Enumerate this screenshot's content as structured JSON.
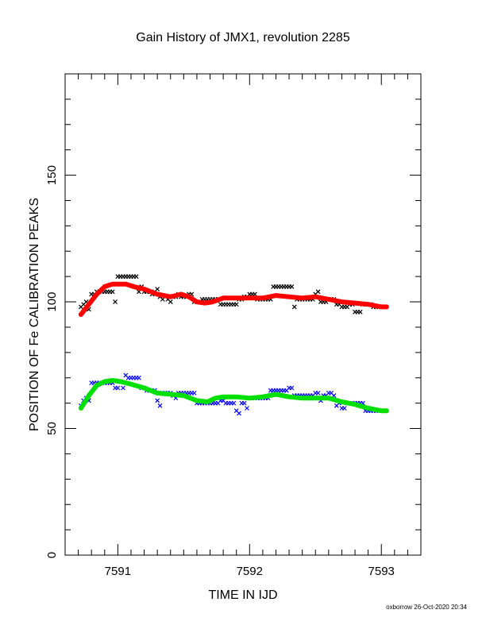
{
  "chart_data": {
    "type": "scatter",
    "title": "Gain History of JMX1, revolution 2285",
    "xlabel": "TIME IN IJD",
    "ylabel": "POSITION OF Fe CALIBRATION PEAKS",
    "xlim": [
      7590.6,
      7593.3
    ],
    "ylim": [
      0,
      190
    ],
    "xticks": [
      7591,
      7592,
      7593
    ],
    "yticks": [
      0,
      50,
      100,
      150
    ],
    "footer": "oxborrow 26-Oct-2020 20:34",
    "series": [
      {
        "role": "upper-points",
        "color": "#000000",
        "marker": "x",
        "points": [
          [
            7590.72,
            98
          ],
          [
            7590.74,
            99
          ],
          [
            7590.76,
            100
          ],
          [
            7590.78,
            97
          ],
          [
            7590.8,
            103
          ],
          [
            7590.82,
            103
          ],
          [
            7590.84,
            104
          ],
          [
            7590.86,
            104
          ],
          [
            7590.88,
            104
          ],
          [
            7590.9,
            104
          ],
          [
            7590.92,
            104
          ],
          [
            7590.94,
            104
          ],
          [
            7590.96,
            104
          ],
          [
            7590.98,
            100
          ],
          [
            7591.0,
            110
          ],
          [
            7591.02,
            110
          ],
          [
            7591.04,
            110
          ],
          [
            7591.06,
            110
          ],
          [
            7591.08,
            110
          ],
          [
            7591.1,
            110
          ],
          [
            7591.12,
            110
          ],
          [
            7591.14,
            110
          ],
          [
            7591.16,
            104
          ],
          [
            7591.18,
            106
          ],
          [
            7591.2,
            104
          ],
          [
            7591.22,
            104
          ],
          [
            7591.24,
            104
          ],
          [
            7591.26,
            103
          ],
          [
            7591.28,
            104
          ],
          [
            7591.3,
            105
          ],
          [
            7591.32,
            102
          ],
          [
            7591.34,
            101
          ],
          [
            7591.36,
            102
          ],
          [
            7591.38,
            101
          ],
          [
            7591.4,
            100
          ],
          [
            7591.42,
            102
          ],
          [
            7591.44,
            102
          ],
          [
            7591.46,
            103
          ],
          [
            7591.48,
            102
          ],
          [
            7591.5,
            102
          ],
          [
            7591.52,
            102
          ],
          [
            7591.54,
            103
          ],
          [
            7591.56,
            103
          ],
          [
            7591.58,
            100
          ],
          [
            7591.6,
            100
          ],
          [
            7591.62,
            100
          ],
          [
            7591.64,
            101
          ],
          [
            7591.66,
            101
          ],
          [
            7591.68,
            101
          ],
          [
            7591.7,
            101
          ],
          [
            7591.72,
            101
          ],
          [
            7591.74,
            101
          ],
          [
            7591.76,
            101
          ],
          [
            7591.78,
            99
          ],
          [
            7591.8,
            99
          ],
          [
            7591.82,
            99
          ],
          [
            7591.84,
            99
          ],
          [
            7591.86,
            99
          ],
          [
            7591.88,
            99
          ],
          [
            7591.9,
            99
          ],
          [
            7591.92,
            101
          ],
          [
            7591.94,
            101
          ],
          [
            7591.96,
            102
          ],
          [
            7591.98,
            102
          ],
          [
            7592.0,
            103
          ],
          [
            7592.02,
            103
          ],
          [
            7592.04,
            103
          ],
          [
            7592.06,
            101
          ],
          [
            7592.08,
            101
          ],
          [
            7592.1,
            101
          ],
          [
            7592.12,
            101
          ],
          [
            7592.14,
            101
          ],
          [
            7592.16,
            101
          ],
          [
            7592.18,
            106
          ],
          [
            7592.2,
            106
          ],
          [
            7592.22,
            106
          ],
          [
            7592.24,
            106
          ],
          [
            7592.26,
            106
          ],
          [
            7592.28,
            106
          ],
          [
            7592.3,
            106
          ],
          [
            7592.32,
            106
          ],
          [
            7592.34,
            98
          ],
          [
            7592.36,
            101
          ],
          [
            7592.38,
            101
          ],
          [
            7592.4,
            101
          ],
          [
            7592.42,
            101
          ],
          [
            7592.44,
            101
          ],
          [
            7592.46,
            101
          ],
          [
            7592.48,
            101
          ],
          [
            7592.5,
            103
          ],
          [
            7592.52,
            104
          ],
          [
            7592.54,
            100
          ],
          [
            7592.56,
            100
          ],
          [
            7592.58,
            100
          ],
          [
            7592.6,
            101
          ],
          [
            7592.62,
            101
          ],
          [
            7592.64,
            101
          ],
          [
            7592.66,
            99
          ],
          [
            7592.68,
            99
          ],
          [
            7592.7,
            98
          ],
          [
            7592.72,
            98
          ],
          [
            7592.74,
            98
          ],
          [
            7592.76,
            99
          ],
          [
            7592.78,
            99
          ],
          [
            7592.8,
            96
          ],
          [
            7592.82,
            96
          ],
          [
            7592.84,
            96
          ],
          [
            7592.86,
            99
          ],
          [
            7592.88,
            99
          ],
          [
            7592.9,
            99
          ],
          [
            7592.92,
            99
          ],
          [
            7592.94,
            98
          ],
          [
            7592.96,
            98
          ],
          [
            7592.98,
            98
          ],
          [
            7593.0,
            98
          ],
          [
            7593.02,
            98
          ]
        ]
      },
      {
        "role": "upper-fit",
        "color": "#ff0000",
        "marker": "line",
        "points": [
          [
            7590.72,
            95
          ],
          [
            7590.78,
            99
          ],
          [
            7590.84,
            103
          ],
          [
            7590.9,
            106
          ],
          [
            7590.96,
            107
          ],
          [
            7591.0,
            107
          ],
          [
            7591.06,
            107
          ],
          [
            7591.12,
            106
          ],
          [
            7591.2,
            105
          ],
          [
            7591.3,
            103
          ],
          [
            7591.4,
            102
          ],
          [
            7591.48,
            103
          ],
          [
            7591.54,
            102
          ],
          [
            7591.6,
            100
          ],
          [
            7591.66,
            99.5
          ],
          [
            7591.72,
            100
          ],
          [
            7591.8,
            101.5
          ],
          [
            7591.9,
            101.5
          ],
          [
            7592.0,
            101.5
          ],
          [
            7592.1,
            101.5
          ],
          [
            7592.2,
            102.5
          ],
          [
            7592.3,
            102
          ],
          [
            7592.4,
            101.5
          ],
          [
            7592.5,
            102
          ],
          [
            7592.6,
            101
          ],
          [
            7592.7,
            100
          ],
          [
            7592.8,
            99.5
          ],
          [
            7592.9,
            99
          ],
          [
            7593.0,
            98
          ],
          [
            7593.04,
            98
          ]
        ]
      },
      {
        "role": "lower-points",
        "color": "#0000ff",
        "marker": "x",
        "points": [
          [
            7590.72,
            59
          ],
          [
            7590.74,
            61
          ],
          [
            7590.76,
            62
          ],
          [
            7590.78,
            61
          ],
          [
            7590.8,
            68
          ],
          [
            7590.82,
            68
          ],
          [
            7590.84,
            68
          ],
          [
            7590.86,
            68
          ],
          [
            7590.88,
            68
          ],
          [
            7590.9,
            68
          ],
          [
            7590.92,
            68
          ],
          [
            7590.94,
            68
          ],
          [
            7590.96,
            68
          ],
          [
            7590.98,
            66
          ],
          [
            7591.0,
            66
          ],
          [
            7591.04,
            66
          ],
          [
            7591.06,
            71
          ],
          [
            7591.08,
            70
          ],
          [
            7591.1,
            70
          ],
          [
            7591.12,
            70
          ],
          [
            7591.14,
            70
          ],
          [
            7591.16,
            70
          ],
          [
            7591.18,
            66
          ],
          [
            7591.2,
            66
          ],
          [
            7591.22,
            65
          ],
          [
            7591.24,
            65
          ],
          [
            7591.26,
            65
          ],
          [
            7591.28,
            65
          ],
          [
            7591.3,
            61
          ],
          [
            7591.32,
            59
          ],
          [
            7591.34,
            64
          ],
          [
            7591.36,
            64
          ],
          [
            7591.38,
            64
          ],
          [
            7591.4,
            64
          ],
          [
            7591.42,
            63
          ],
          [
            7591.44,
            62
          ],
          [
            7591.46,
            64
          ],
          [
            7591.48,
            64
          ],
          [
            7591.5,
            64
          ],
          [
            7591.52,
            64
          ],
          [
            7591.54,
            64
          ],
          [
            7591.56,
            64
          ],
          [
            7591.58,
            64
          ],
          [
            7591.6,
            60
          ],
          [
            7591.62,
            60
          ],
          [
            7591.64,
            60
          ],
          [
            7591.66,
            60
          ],
          [
            7591.68,
            60
          ],
          [
            7591.7,
            60
          ],
          [
            7591.72,
            60
          ],
          [
            7591.74,
            60
          ],
          [
            7591.76,
            60
          ],
          [
            7591.78,
            61
          ],
          [
            7591.8,
            61
          ],
          [
            7591.82,
            60
          ],
          [
            7591.84,
            60
          ],
          [
            7591.86,
            60
          ],
          [
            7591.88,
            60
          ],
          [
            7591.9,
            57
          ],
          [
            7591.92,
            56
          ],
          [
            7591.94,
            60
          ],
          [
            7591.96,
            60
          ],
          [
            7591.98,
            58
          ],
          [
            7592.0,
            62
          ],
          [
            7592.02,
            62
          ],
          [
            7592.04,
            62
          ],
          [
            7592.06,
            62
          ],
          [
            7592.08,
            62
          ],
          [
            7592.1,
            62
          ],
          [
            7592.12,
            62
          ],
          [
            7592.14,
            62
          ],
          [
            7592.16,
            65
          ],
          [
            7592.18,
            65
          ],
          [
            7592.2,
            65
          ],
          [
            7592.22,
            65
          ],
          [
            7592.24,
            65
          ],
          [
            7592.26,
            65
          ],
          [
            7592.28,
            65
          ],
          [
            7592.3,
            66
          ],
          [
            7592.32,
            66
          ],
          [
            7592.34,
            63
          ],
          [
            7592.36,
            63
          ],
          [
            7592.38,
            63
          ],
          [
            7592.4,
            63
          ],
          [
            7592.42,
            63
          ],
          [
            7592.44,
            63
          ],
          [
            7592.46,
            63
          ],
          [
            7592.48,
            63
          ],
          [
            7592.5,
            64
          ],
          [
            7592.52,
            64
          ],
          [
            7592.54,
            61
          ],
          [
            7592.56,
            63
          ],
          [
            7592.58,
            63
          ],
          [
            7592.6,
            64
          ],
          [
            7592.62,
            64
          ],
          [
            7592.64,
            63
          ],
          [
            7592.66,
            59
          ],
          [
            7592.68,
            60
          ],
          [
            7592.7,
            58
          ],
          [
            7592.72,
            58
          ],
          [
            7592.74,
            60
          ],
          [
            7592.76,
            60
          ],
          [
            7592.78,
            60
          ],
          [
            7592.8,
            60
          ],
          [
            7592.82,
            60
          ],
          [
            7592.84,
            60
          ],
          [
            7592.86,
            60
          ],
          [
            7592.88,
            57
          ],
          [
            7592.9,
            57
          ],
          [
            7592.92,
            57
          ],
          [
            7592.94,
            57
          ],
          [
            7592.96,
            57
          ],
          [
            7592.98,
            57
          ],
          [
            7593.0,
            57
          ],
          [
            7593.02,
            57
          ]
        ]
      },
      {
        "role": "lower-fit",
        "color": "#00e000",
        "marker": "line",
        "points": [
          [
            7590.72,
            58
          ],
          [
            7590.78,
            63
          ],
          [
            7590.84,
            67
          ],
          [
            7590.9,
            68.5
          ],
          [
            7590.96,
            69
          ],
          [
            7591.02,
            68.5
          ],
          [
            7591.1,
            67.5
          ],
          [
            7591.2,
            66
          ],
          [
            7591.3,
            64
          ],
          [
            7591.4,
            63.5
          ],
          [
            7591.5,
            63
          ],
          [
            7591.6,
            61
          ],
          [
            7591.68,
            60.5
          ],
          [
            7591.74,
            62
          ],
          [
            7591.8,
            62.5
          ],
          [
            7591.9,
            62.5
          ],
          [
            7592.0,
            62
          ],
          [
            7592.1,
            62.5
          ],
          [
            7592.2,
            63.5
          ],
          [
            7592.3,
            62.5
          ],
          [
            7592.4,
            62
          ],
          [
            7592.5,
            62
          ],
          [
            7592.6,
            62
          ],
          [
            7592.7,
            60.5
          ],
          [
            7592.8,
            59.5
          ],
          [
            7592.9,
            58
          ],
          [
            7593.0,
            57
          ],
          [
            7593.04,
            57
          ]
        ]
      }
    ]
  }
}
